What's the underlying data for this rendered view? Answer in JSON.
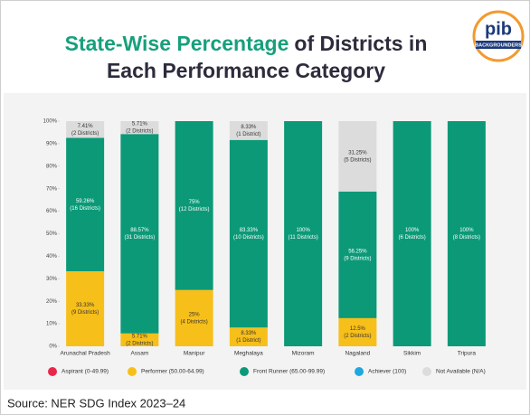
{
  "chart_data": {
    "type": "stacked_bar",
    "title_highlight": "State-Wise Percentage",
    "title_rest": "of Districts in",
    "title_line2": "Each Performance Category",
    "logo": {
      "text": "pib",
      "subtitle": "BACKGROUNDERS"
    },
    "source": "Source: NER SDG Index 2023–24",
    "categories": [
      "Arunachal Pradesh",
      "Assam",
      "Manipur",
      "Meghalaya",
      "Mizoram",
      "Nagaland",
      "Sikkim",
      "Tripura"
    ],
    "series": [
      {
        "name": "Aspirant (0-49.99)",
        "color": "#e8274b",
        "values": [
          0,
          0,
          0,
          0,
          0,
          0,
          0,
          0
        ],
        "value_labels": [
          null,
          null,
          null,
          null,
          null,
          null,
          null,
          null
        ],
        "district_labels": [
          null,
          null,
          null,
          null,
          null,
          null,
          null,
          null
        ]
      },
      {
        "name": "Performer (50.00-64.99)",
        "color": "#f7bf1a",
        "values": [
          33.33,
          5.71,
          25,
          8.33,
          0,
          12.5,
          0,
          0
        ],
        "value_labels": [
          "33.33%",
          "5.71%",
          "25%",
          "8.33%",
          null,
          "12.5%",
          null,
          null
        ],
        "district_labels": [
          "(9 Districts)",
          "(2 Districts)",
          "(4 Districts)",
          "(1 District)",
          null,
          "(2 Districts)",
          null,
          null
        ]
      },
      {
        "name": "Front Runner (65.00-99.99)",
        "color": "#0b9977",
        "values": [
          59.26,
          88.57,
          75,
          83.33,
          100,
          56.25,
          100,
          100
        ],
        "value_labels": [
          "59.26%",
          "88.57%",
          "75%",
          "83.33%",
          "100%",
          "56.25%",
          "100%",
          "100%"
        ],
        "district_labels": [
          "(16 Districts)",
          "(31 Districts)",
          "(12 Districts)",
          "(10 Districts)",
          "(11 Districts)",
          "(9 Districts)",
          "(6 Districts)",
          "(8 Districts)"
        ]
      },
      {
        "name": "Achiever (100)",
        "color": "#1ea8e0",
        "values": [
          0,
          0,
          0,
          0,
          0,
          0,
          0,
          0
        ],
        "value_labels": [
          null,
          null,
          null,
          null,
          null,
          null,
          null,
          null
        ],
        "district_labels": [
          null,
          null,
          null,
          null,
          null,
          null,
          null,
          null
        ]
      },
      {
        "name": "Not Available (N/A)",
        "color": "#dcdcdc",
        "values": [
          7.41,
          5.71,
          0,
          8.33,
          0,
          31.25,
          0,
          0
        ],
        "value_labels": [
          "7.41%",
          "5.71%",
          null,
          "8.33%",
          null,
          "31.25%",
          null,
          null
        ],
        "district_labels": [
          "(2 Districts)",
          "(2 Districts)",
          null,
          "(1 District)",
          null,
          "(5 Districts)",
          null,
          null
        ]
      }
    ],
    "ylim": [
      0,
      100
    ],
    "yticks": [
      {
        "value": 0,
        "label": "0%"
      },
      {
        "value": 10,
        "label": "10%"
      },
      {
        "value": 20,
        "label": "20%"
      },
      {
        "value": 30,
        "label": "30%"
      },
      {
        "value": 40,
        "label": "40%"
      },
      {
        "value": 50,
        "label": "50%"
      },
      {
        "value": 60,
        "label": "60%"
      },
      {
        "value": 70,
        "label": "70%"
      },
      {
        "value": 80,
        "label": "80%"
      },
      {
        "value": 90,
        "label": "90%"
      },
      {
        "value": 100,
        "label": "100%"
      }
    ]
  }
}
